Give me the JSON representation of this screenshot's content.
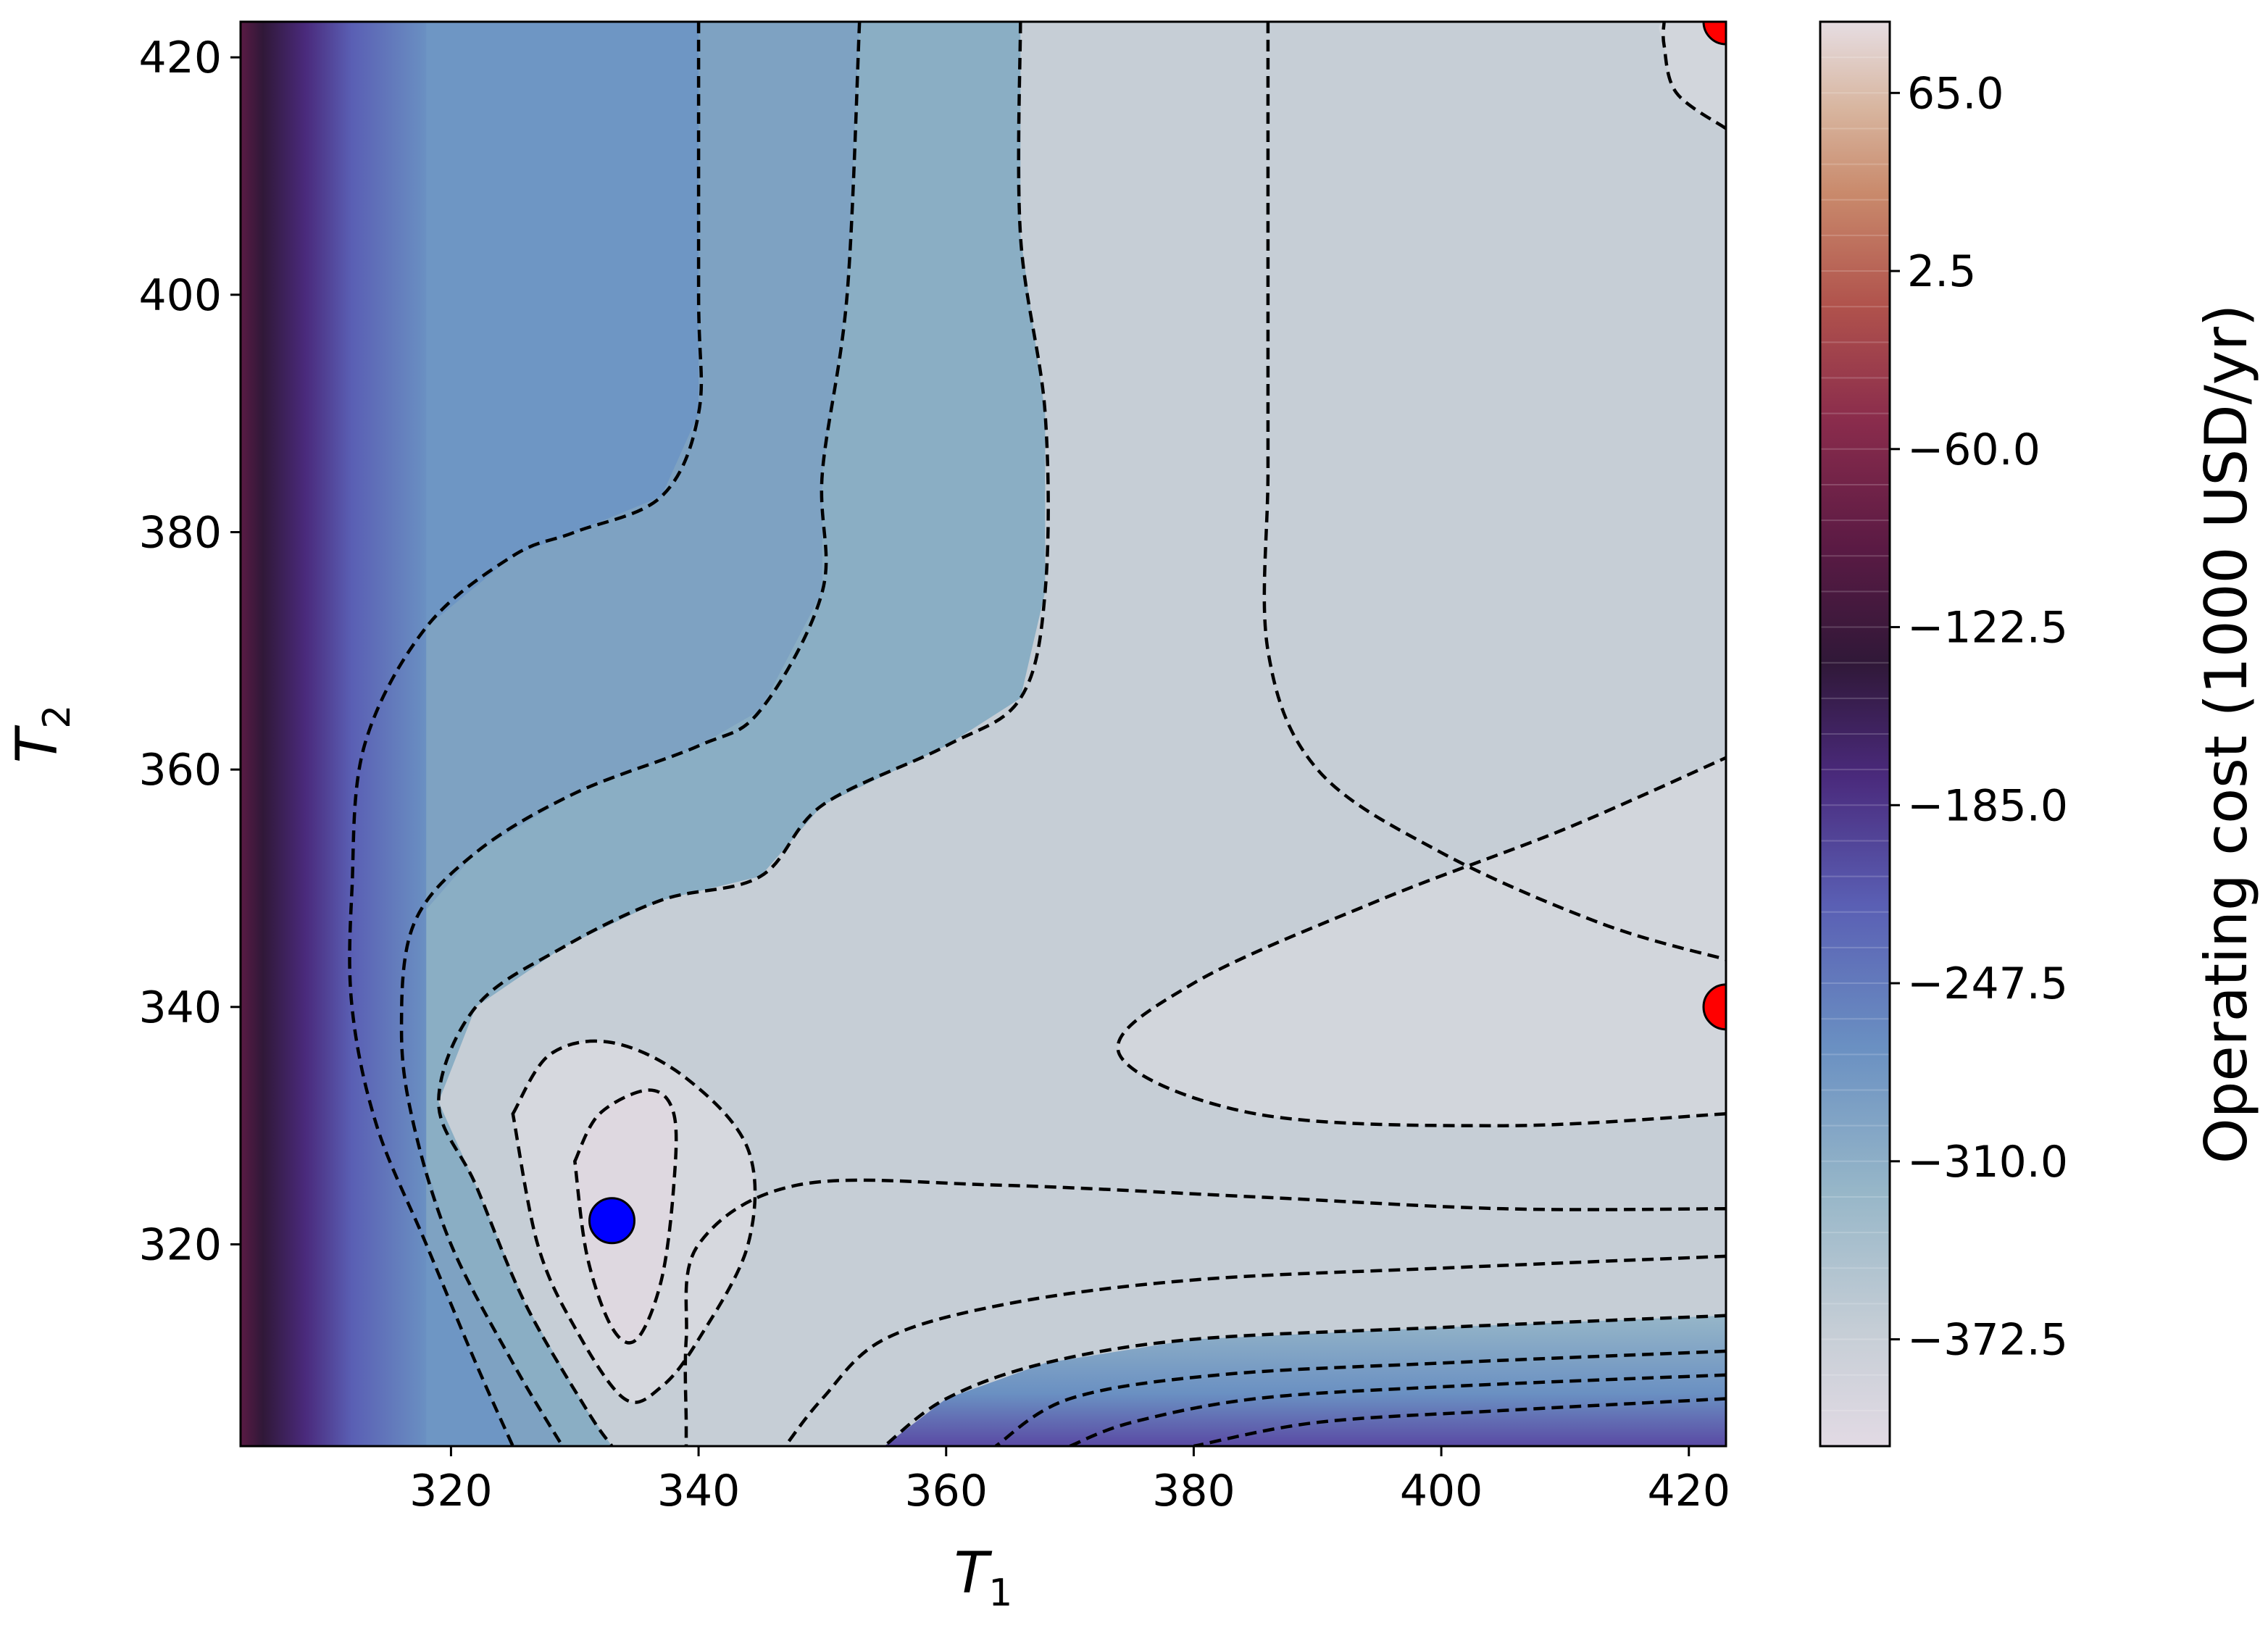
{
  "chart_data": {
    "type": "contour",
    "xlabel": "T",
    "xlabel_sub": "1",
    "ylabel": "T",
    "ylabel_sub": "2",
    "xlim": [
      303,
      423
    ],
    "ylim": [
      303,
      423
    ],
    "x_ticks": [
      320,
      340,
      360,
      380,
      400,
      420
    ],
    "y_ticks": [
      320,
      340,
      360,
      380,
      400,
      420
    ],
    "x_tick_labels": [
      "320",
      "340",
      "360",
      "380",
      "400",
      "420"
    ],
    "y_tick_labels": [
      "320",
      "340",
      "360",
      "380",
      "400",
      "420"
    ],
    "colorbar": {
      "label": "Operating cost (1000 USD/yr)",
      "range": [
        -410,
        90
      ],
      "ticks": [
        65.0,
        2.5,
        -60.0,
        -122.5,
        -185.0,
        -247.5,
        -310.0,
        -372.5
      ],
      "tick_labels": [
        "65.0",
        "2.5",
        "−60.0",
        "−122.5",
        "−185.0",
        "−247.5",
        "−310.0",
        "−372.5"
      ],
      "colormap": "twilight",
      "level_step": 12.5
    },
    "points": [
      {
        "x": 333,
        "y": 322,
        "color": "#0000ff",
        "role": "minimum"
      },
      {
        "x": 423,
        "y": 340,
        "color": "#ff0000",
        "role": "boundary"
      },
      {
        "x": 423,
        "y": 423,
        "color": "#ff0000",
        "role": "boundary"
      }
    ],
    "contour_lines": [
      [
        [
          330,
          327
        ],
        [
          332,
          331
        ],
        [
          336,
          333
        ],
        [
          338,
          331
        ],
        [
          338,
          325
        ],
        [
          337,
          317
        ],
        [
          335,
          312
        ],
        [
          333,
          313
        ],
        [
          331,
          319
        ],
        [
          330,
          327
        ]
      ],
      [
        [
          325,
          331
        ],
        [
          328,
          336
        ],
        [
          333,
          337
        ],
        [
          339,
          334
        ],
        [
          344,
          328
        ],
        [
          344,
          320
        ],
        [
          340,
          312
        ],
        [
          337,
          308
        ],
        [
          334,
          307
        ],
        [
          330,
          313
        ],
        [
          327,
          320
        ],
        [
          325,
          331
        ]
      ],
      [
        [
          386,
          423
        ],
        [
          386,
          400
        ],
        [
          386,
          385
        ],
        [
          386,
          370
        ],
        [
          390,
          360
        ],
        [
          400,
          353
        ],
        [
          413,
          347
        ],
        [
          423,
          344
        ]
      ],
      [
        [
          423,
          414
        ],
        [
          419,
          417
        ],
        [
          418,
          421
        ],
        [
          418,
          423
        ]
      ],
      [
        [
          423,
          331
        ],
        [
          405,
          330
        ],
        [
          385,
          331
        ],
        [
          374,
          336
        ],
        [
          380,
          342
        ],
        [
          395,
          349
        ],
        [
          410,
          355
        ],
        [
          423,
          361
        ]
      ],
      [
        [
          423,
          323
        ],
        [
          405,
          323
        ],
        [
          385,
          324
        ],
        [
          364,
          325
        ],
        [
          348,
          325
        ],
        [
          340,
          320
        ],
        [
          339,
          312
        ],
        [
          339,
          305
        ],
        [
          339,
          303
        ]
      ],
      [
        [
          366,
          423
        ],
        [
          366,
          405
        ],
        [
          368,
          390
        ],
        [
          368,
          375
        ],
        [
          366,
          366
        ],
        [
          360,
          362
        ],
        [
          350,
          357
        ],
        [
          345,
          351
        ],
        [
          337,
          349
        ],
        [
          329,
          345
        ],
        [
          322,
          340
        ],
        [
          319,
          332
        ],
        [
          322,
          325
        ],
        [
          326,
          315
        ],
        [
          331,
          306
        ],
        [
          333,
          303
        ]
      ],
      [
        [
          353,
          423
        ],
        [
          352,
          400
        ],
        [
          350,
          385
        ],
        [
          350,
          375
        ],
        [
          345,
          365
        ],
        [
          340,
          362
        ],
        [
          330,
          358
        ],
        [
          322,
          353
        ],
        [
          317,
          347
        ],
        [
          316,
          338
        ],
        [
          317,
          330
        ],
        [
          320,
          320
        ],
        [
          325,
          310
        ],
        [
          329,
          303
        ]
      ],
      [
        [
          340,
          423
        ],
        [
          340,
          400
        ],
        [
          340,
          390
        ],
        [
          337,
          383
        ],
        [
          330,
          380
        ],
        [
          325,
          378
        ],
        [
          318,
          372
        ],
        [
          313,
          362
        ],
        [
          312,
          350
        ],
        [
          312,
          340
        ],
        [
          314,
          330
        ],
        [
          318,
          320
        ],
        [
          322,
          310
        ],
        [
          325,
          303
        ]
      ],
      [
        [
          423,
          319
        ],
        [
          400,
          318
        ],
        [
          380,
          317
        ],
        [
          365,
          315
        ],
        [
          355,
          312
        ],
        [
          350,
          307
        ],
        [
          347,
          303
        ]
      ],
      [
        [
          423,
          314
        ],
        [
          400,
          313
        ],
        [
          380,
          312
        ],
        [
          368,
          310
        ],
        [
          360,
          307
        ],
        [
          355,
          303
        ]
      ],
      [
        [
          423,
          311
        ],
        [
          400,
          310
        ],
        [
          382,
          309
        ],
        [
          370,
          307
        ],
        [
          364,
          303
        ]
      ],
      [
        [
          423,
          309
        ],
        [
          400,
          308
        ],
        [
          385,
          307
        ],
        [
          375,
          305
        ],
        [
          370,
          303
        ]
      ],
      [
        [
          423,
          307
        ],
        [
          405,
          306
        ],
        [
          390,
          305
        ],
        [
          380,
          303
        ]
      ]
    ]
  }
}
